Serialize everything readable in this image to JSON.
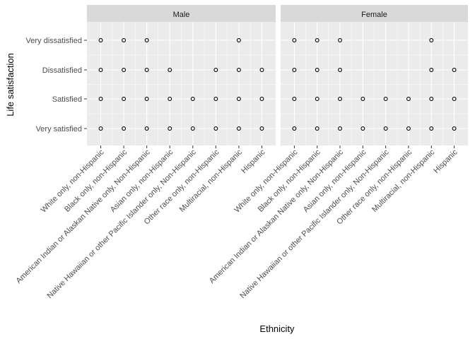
{
  "chart_data": {
    "type": "scatter",
    "xlabel": "Ethnicity",
    "ylabel": "Life satisfaction",
    "categories": [
      "White only, non-Hispanic",
      "Black only, non-Hispanic",
      "American Indian or Alaskan Native only, Non-Hispanic",
      "Asian only, non-Hispanic",
      "Native Hawaiian or other Pacific Islander only, Non-Hispanic",
      "Other race only, non-Hispanic",
      "Multiracial, non-Hispanic",
      "Hispanic"
    ],
    "levels": [
      "Very satisfied",
      "Satisfied",
      "Dissatisfied",
      "Very dissatisfied"
    ],
    "facets": [
      {
        "name": "Male",
        "points": [
          {
            "x": "White only, non-Hispanic",
            "y": [
              "Very satisfied",
              "Satisfied",
              "Dissatisfied",
              "Very dissatisfied"
            ]
          },
          {
            "x": "Black only, non-Hispanic",
            "y": [
              "Very satisfied",
              "Satisfied",
              "Dissatisfied",
              "Very dissatisfied"
            ]
          },
          {
            "x": "American Indian or Alaskan Native only, Non-Hispanic",
            "y": [
              "Very satisfied",
              "Satisfied",
              "Dissatisfied",
              "Very dissatisfied"
            ]
          },
          {
            "x": "Asian only, non-Hispanic",
            "y": [
              "Very satisfied",
              "Satisfied",
              "Dissatisfied"
            ]
          },
          {
            "x": "Native Hawaiian or other Pacific Islander only, Non-Hispanic",
            "y": [
              "Very satisfied",
              "Satisfied"
            ]
          },
          {
            "x": "Other race only, non-Hispanic",
            "y": [
              "Very satisfied",
              "Satisfied",
              "Dissatisfied"
            ]
          },
          {
            "x": "Multiracial, non-Hispanic",
            "y": [
              "Very satisfied",
              "Satisfied",
              "Dissatisfied",
              "Very dissatisfied"
            ]
          },
          {
            "x": "Hispanic",
            "y": [
              "Very satisfied",
              "Satisfied",
              "Dissatisfied"
            ]
          }
        ]
      },
      {
        "name": "Female",
        "points": [
          {
            "x": "White only, non-Hispanic",
            "y": [
              "Very satisfied",
              "Satisfied",
              "Dissatisfied",
              "Very dissatisfied"
            ]
          },
          {
            "x": "Black only, non-Hispanic",
            "y": [
              "Very satisfied",
              "Satisfied",
              "Dissatisfied",
              "Very dissatisfied"
            ]
          },
          {
            "x": "American Indian or Alaskan Native only, Non-Hispanic",
            "y": [
              "Very satisfied",
              "Satisfied",
              "Dissatisfied",
              "Very dissatisfied"
            ]
          },
          {
            "x": "Asian only, non-Hispanic",
            "y": [
              "Very satisfied",
              "Satisfied"
            ]
          },
          {
            "x": "Native Hawaiian or other Pacific Islander only, Non-Hispanic",
            "y": [
              "Very satisfied",
              "Satisfied"
            ]
          },
          {
            "x": "Other race only, non-Hispanic",
            "y": [
              "Very satisfied",
              "Satisfied"
            ]
          },
          {
            "x": "Multiracial, non-Hispanic",
            "y": [
              "Very satisfied",
              "Satisfied",
              "Dissatisfied",
              "Very dissatisfied"
            ]
          },
          {
            "x": "Hispanic",
            "y": [
              "Very satisfied",
              "Satisfied",
              "Dissatisfied"
            ]
          }
        ]
      }
    ],
    "grid": true,
    "legend": "none",
    "colors": {
      "panel": "#ebebeb",
      "strip": "#d9d9d9",
      "grid": "#ffffff",
      "point_stroke": "#000000",
      "point_fill": "#ffffff"
    }
  }
}
